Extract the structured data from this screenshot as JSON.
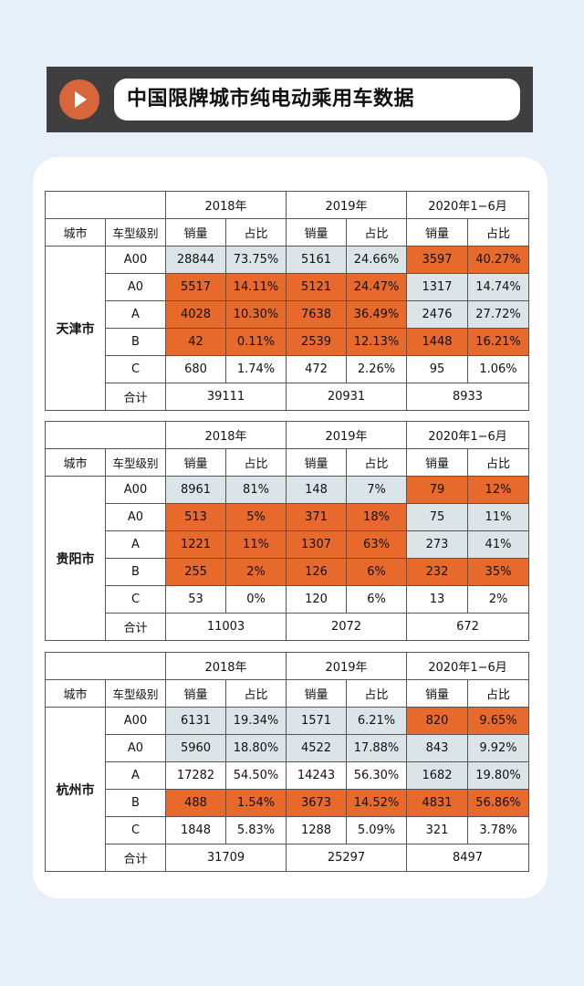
{
  "header": {
    "title": "中国限牌城市纯电动乘用车数据",
    "play_icon": "play-icon",
    "accent": "#d9663a"
  },
  "colors": {
    "orange": "#e8692c",
    "gray": "#dbe5e8",
    "background": "#e7f0f8"
  },
  "columns": {
    "years": [
      "2018年",
      "2019年",
      "2020年1−6月"
    ],
    "city_label": "城市",
    "class_label": "车型级别",
    "sales_label": "销量",
    "share_label": "占比",
    "total_label": "合计"
  },
  "tables": [
    {
      "city": "天津市",
      "rows": [
        {
          "cls": "A00",
          "cells": [
            {
              "v": "28844",
              "c": "g"
            },
            {
              "v": "73.75%",
              "c": "g"
            },
            {
              "v": "5161",
              "c": "g"
            },
            {
              "v": "24.66%",
              "c": "g"
            },
            {
              "v": "3597",
              "c": "o"
            },
            {
              "v": "40.27%",
              "c": "o"
            }
          ]
        },
        {
          "cls": "A0",
          "cells": [
            {
              "v": "5517",
              "c": "o"
            },
            {
              "v": "14.11%",
              "c": "o"
            },
            {
              "v": "5121",
              "c": "o"
            },
            {
              "v": "24.47%",
              "c": "o"
            },
            {
              "v": "1317",
              "c": "g"
            },
            {
              "v": "14.74%",
              "c": "g"
            }
          ]
        },
        {
          "cls": "A",
          "cells": [
            {
              "v": "4028",
              "c": "o"
            },
            {
              "v": "10.30%",
              "c": "o"
            },
            {
              "v": "7638",
              "c": "o"
            },
            {
              "v": "36.49%",
              "c": "o"
            },
            {
              "v": "2476",
              "c": "g"
            },
            {
              "v": "27.72%",
              "c": "g"
            }
          ]
        },
        {
          "cls": "B",
          "cells": [
            {
              "v": "42",
              "c": "o"
            },
            {
              "v": "0.11%",
              "c": "o"
            },
            {
              "v": "2539",
              "c": "o"
            },
            {
              "v": "12.13%",
              "c": "o"
            },
            {
              "v": "1448",
              "c": "o"
            },
            {
              "v": "16.21%",
              "c": "o"
            }
          ]
        },
        {
          "cls": "C",
          "cells": [
            {
              "v": "680",
              "c": "w"
            },
            {
              "v": "1.74%",
              "c": "w"
            },
            {
              "v": "472",
              "c": "w"
            },
            {
              "v": "2.26%",
              "c": "w"
            },
            {
              "v": "95",
              "c": "w"
            },
            {
              "v": "1.06%",
              "c": "w"
            }
          ]
        }
      ],
      "totals": [
        "39111",
        "20931",
        "8933"
      ]
    },
    {
      "city": "贵阳市",
      "rows": [
        {
          "cls": "A00",
          "cells": [
            {
              "v": "8961",
              "c": "g"
            },
            {
              "v": "81%",
              "c": "g"
            },
            {
              "v": "148",
              "c": "g"
            },
            {
              "v": "7%",
              "c": "g"
            },
            {
              "v": "79",
              "c": "o"
            },
            {
              "v": "12%",
              "c": "o"
            }
          ]
        },
        {
          "cls": "A0",
          "cells": [
            {
              "v": "513",
              "c": "o"
            },
            {
              "v": "5%",
              "c": "o"
            },
            {
              "v": "371",
              "c": "o"
            },
            {
              "v": "18%",
              "c": "o"
            },
            {
              "v": "75",
              "c": "g"
            },
            {
              "v": "11%",
              "c": "g"
            }
          ]
        },
        {
          "cls": "A",
          "cells": [
            {
              "v": "1221",
              "c": "o"
            },
            {
              "v": "11%",
              "c": "o"
            },
            {
              "v": "1307",
              "c": "o"
            },
            {
              "v": "63%",
              "c": "o"
            },
            {
              "v": "273",
              "c": "g"
            },
            {
              "v": "41%",
              "c": "g"
            }
          ]
        },
        {
          "cls": "B",
          "cells": [
            {
              "v": "255",
              "c": "o"
            },
            {
              "v": "2%",
              "c": "o"
            },
            {
              "v": "126",
              "c": "o"
            },
            {
              "v": "6%",
              "c": "o"
            },
            {
              "v": "232",
              "c": "o"
            },
            {
              "v": "35%",
              "c": "o"
            }
          ]
        },
        {
          "cls": "C",
          "cells": [
            {
              "v": "53",
              "c": "w"
            },
            {
              "v": "0%",
              "c": "w"
            },
            {
              "v": "120",
              "c": "w"
            },
            {
              "v": "6%",
              "c": "w"
            },
            {
              "v": "13",
              "c": "w"
            },
            {
              "v": "2%",
              "c": "w"
            }
          ]
        }
      ],
      "totals": [
        "11003",
        "2072",
        "672"
      ]
    },
    {
      "city": "杭州市",
      "rows": [
        {
          "cls": "A00",
          "cells": [
            {
              "v": "6131",
              "c": "g"
            },
            {
              "v": "19.34%",
              "c": "g"
            },
            {
              "v": "1571",
              "c": "g"
            },
            {
              "v": "6.21%",
              "c": "g"
            },
            {
              "v": "820",
              "c": "o"
            },
            {
              "v": "9.65%",
              "c": "o"
            }
          ]
        },
        {
          "cls": "A0",
          "cells": [
            {
              "v": "5960",
              "c": "g"
            },
            {
              "v": "18.80%",
              "c": "g"
            },
            {
              "v": "4522",
              "c": "g"
            },
            {
              "v": "17.88%",
              "c": "g"
            },
            {
              "v": "843",
              "c": "g"
            },
            {
              "v": "9.92%",
              "c": "g"
            }
          ]
        },
        {
          "cls": "A",
          "cells": [
            {
              "v": "17282",
              "c": "w"
            },
            {
              "v": "54.50%",
              "c": "w"
            },
            {
              "v": "14243",
              "c": "w"
            },
            {
              "v": "56.30%",
              "c": "w"
            },
            {
              "v": "1682",
              "c": "g"
            },
            {
              "v": "19.80%",
              "c": "g"
            }
          ]
        },
        {
          "cls": "B",
          "cells": [
            {
              "v": "488",
              "c": "o"
            },
            {
              "v": "1.54%",
              "c": "o"
            },
            {
              "v": "3673",
              "c": "o"
            },
            {
              "v": "14.52%",
              "c": "o"
            },
            {
              "v": "4831",
              "c": "o"
            },
            {
              "v": "56.86%",
              "c": "o"
            }
          ]
        },
        {
          "cls": "C",
          "cells": [
            {
              "v": "1848",
              "c": "w"
            },
            {
              "v": "5.83%",
              "c": "w"
            },
            {
              "v": "1288",
              "c": "w"
            },
            {
              "v": "5.09%",
              "c": "w"
            },
            {
              "v": "321",
              "c": "w"
            },
            {
              "v": "3.78%",
              "c": "w"
            }
          ]
        }
      ],
      "totals": [
        "31709",
        "25297",
        "8497"
      ]
    }
  ]
}
